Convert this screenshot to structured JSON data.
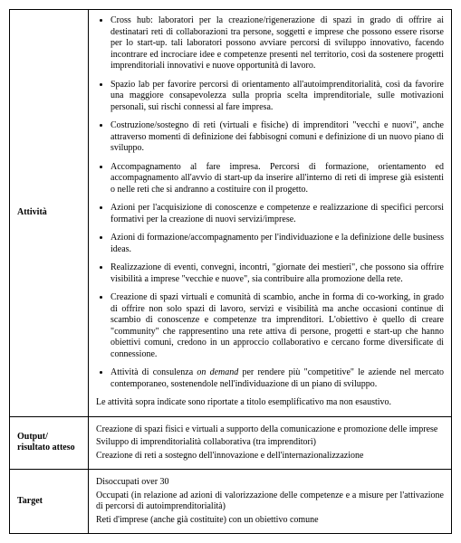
{
  "row1": {
    "label": "Attività",
    "items": [
      "Cross hub: laboratori per la creazione/rigenerazione di spazi in grado di offrire ai destinatari reti di collaborazioni tra persone, soggetti e imprese che possono essere risorse per lo start-up. tali laboratori possono avviare percorsi di sviluppo innovativo, facendo incontrare ed incrociare idee e competenze presenti nel territorio, così da sostenere progetti imprenditoriali innovativi e nuove opportunità di lavoro.",
      "Spazio lab per favorire percorsi di orientamento all'autoimprenditorialità, così da favorire una maggiore consapevolezza sulla propria scelta imprenditoriale, sulle motivazioni personali, sui rischi connessi al fare impresa.",
      "Costruzione/sostegno di reti (virtuali e fisiche) di imprenditori \"vecchi e nuovi\", anche attraverso momenti di definizione dei fabbisogni comuni e definizione di un nuovo piano di sviluppo.",
      "Accompagnamento al fare impresa. Percorsi di formazione, orientamento ed accompagnamento all'avvio di start-up da inserire all'interno di reti di imprese  già esistenti o nelle reti che si andranno a costituire con il progetto.",
      "Azioni per l'acquisizione di conoscenze e competenze e realizzazione di specifici percorsi formativi per la creazione di nuovi servizi/imprese.",
      "Azioni di formazione/accompagnamento per l'individuazione e la definizione delle business ideas.",
      "Realizzazione di eventi, convegni, incontri, \"giornate dei mestieri\", che possono sia offrire visibilità a imprese \"vecchie e nuove\", sia contribuire alla promozione della rete.",
      "Creazione di spazi virtuali e comunità di scambio, anche in forma di co-working, in grado di offrire non solo spazi di lavoro, servizi e visibilità ma anche occasioni continue di scambio di conoscenze e competenze tra imprenditori. L'obiettivo è quello di creare \"community\" che rappresentino una rete attiva di persone, progetti e start-up che hanno obiettivi comuni, credono in un approccio collaborativo e cercano forme diversificate di connessione."
    ],
    "last_pre": "Attività di consulenza ",
    "last_em": "on demand",
    "last_post": " per rendere più \"competitive\" le aziende nel mercato contemporaneo, sostenendole nell'individuazione di un piano di sviluppo.",
    "note": "Le attività sopra indicate sono riportate a  titolo esemplificativo ma non esaustivo."
  },
  "row2": {
    "label": "Output/ risultato atteso",
    "line1": "Creazione di spazi fisici e virtuali a supporto della comunicazione e promozione delle imprese",
    "line2": "Sviluppo di imprenditorialità collaborativa (tra imprenditori)",
    "line3": "Creazione di reti a sostegno dell'innovazione e dell'internazionalizzazione"
  },
  "row3": {
    "label": "Target",
    "line1": "Disoccupati over 30",
    "line2": "Occupati (in relazione ad azioni di valorizzazione delle competenze e a misure per l'attivazione di percorsi di autoimprenditorialità)",
    "line3": "Reti d'imprese (anche già costituite) con un obiettivo comune"
  }
}
